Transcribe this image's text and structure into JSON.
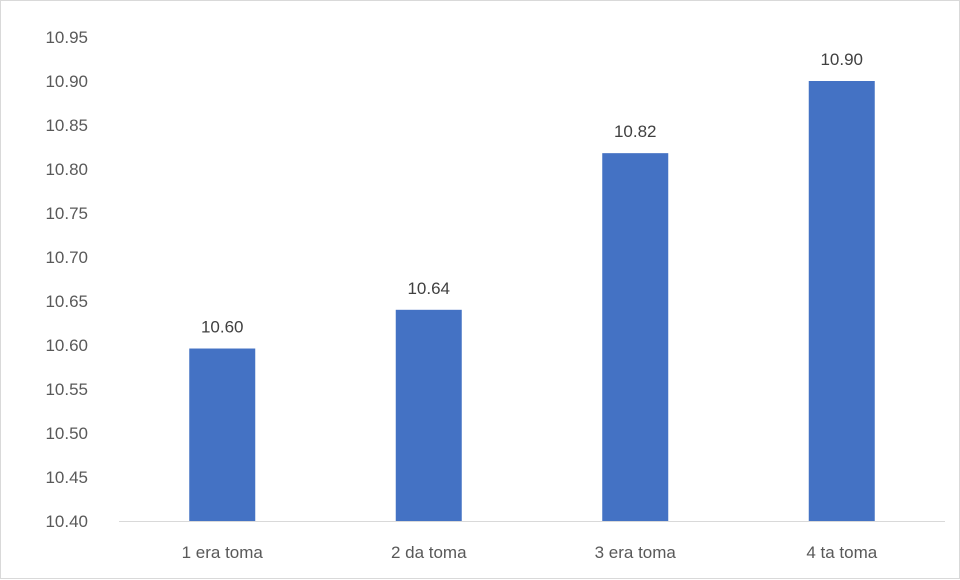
{
  "chart_data": {
    "type": "bar",
    "categories": [
      "1 era toma",
      "2 da toma",
      "3 era toma",
      "4 ta toma"
    ],
    "values": [
      10.596,
      10.64,
      10.818,
      10.9
    ],
    "data_labels": [
      "10.60",
      "10.64",
      "10.82",
      "10.90"
    ],
    "title": "",
    "xlabel": "",
    "ylabel": "",
    "ylim": [
      10.4,
      10.95
    ],
    "yticks": [
      "10.40",
      "10.45",
      "10.50",
      "10.55",
      "10.60",
      "10.65",
      "10.70",
      "10.75",
      "10.80",
      "10.85",
      "10.90",
      "10.95"
    ],
    "grid": false,
    "legend": "none",
    "bar_color": "#4472C4"
  }
}
